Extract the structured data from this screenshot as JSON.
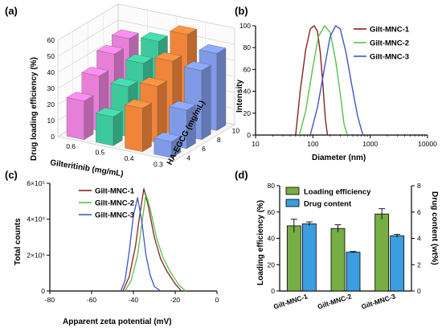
{
  "panels": {
    "a": {
      "label": "(a)"
    },
    "b": {
      "label": "(b)"
    },
    "c": {
      "label": "(c)"
    },
    "d": {
      "label": "(d)"
    }
  },
  "chart_data": [
    {
      "panel": "a",
      "type": "bar",
      "subtype": "3d-bar",
      "title": "",
      "zlabel": "Drug loading efficiency (%)",
      "xlabel": "Gilteritinib (mg/mL)",
      "ylabel": "HA-EGCG (mg/mL)",
      "x_categories": [
        "0.6",
        "0.5",
        "0.4",
        "0.3"
      ],
      "y_categories": [
        "10",
        "8",
        "6",
        "4"
      ],
      "zlim": [
        0,
        60
      ],
      "zticks": [
        "0",
        "10",
        "20",
        "30",
        "40",
        "50",
        "60"
      ],
      "colors": {
        "0.6": "#e77fd8",
        "0.5": "#3cc99c",
        "0.4": "#f0843a",
        "0.3": "#7f9ae6"
      },
      "values": [
        {
          "x": "0.6",
          "y": "10",
          "z": 46
        },
        {
          "x": "0.6",
          "y": "8",
          "z": 42
        },
        {
          "x": "0.6",
          "y": "6",
          "z": 34
        },
        {
          "x": "0.6",
          "y": "4",
          "z": 24
        },
        {
          "x": "0.5",
          "y": "10",
          "z": 48
        },
        {
          "x": "0.5",
          "y": "8",
          "z": 40
        },
        {
          "x": "0.5",
          "y": "6",
          "z": 31
        },
        {
          "x": "0.5",
          "y": "4",
          "z": 18
        },
        {
          "x": "0.4",
          "y": "10",
          "z": 56
        },
        {
          "x": "0.4",
          "y": "8",
          "z": 45
        },
        {
          "x": "0.4",
          "y": "6",
          "z": 35
        },
        {
          "x": "0.4",
          "y": "4",
          "z": 27
        },
        {
          "x": "0.3",
          "y": "10",
          "z": 48
        },
        {
          "x": "0.3",
          "y": "8",
          "z": 43
        },
        {
          "x": "0.3",
          "y": "6",
          "z": 24
        },
        {
          "x": "0.3",
          "y": "4",
          "z": 10
        }
      ]
    },
    {
      "panel": "b",
      "type": "line",
      "xscale": "log",
      "xlabel": "Diameter (nm)",
      "ylabel": "Intensity",
      "xlim": [
        10,
        10000
      ],
      "ylim": [
        0,
        100
      ],
      "xticks": [
        "10",
        "100",
        "1000",
        "10000"
      ],
      "yticks": [
        "0",
        "20",
        "40",
        "60",
        "80",
        "100"
      ],
      "legend": "top-right",
      "series": [
        {
          "name": "Gilt-MNC-1",
          "color": "#8b1f1f",
          "x": [
            50,
            60,
            75,
            90,
            105,
            120,
            135,
            150,
            165,
            180
          ],
          "y": [
            0,
            40,
            78,
            97,
            100,
            95,
            75,
            45,
            15,
            0
          ]
        },
        {
          "name": "Gilt-MNC-2",
          "color": "#57c14b",
          "x": [
            58,
            75,
            100,
            125,
            160,
            200,
            250,
            300,
            350,
            400
          ],
          "y": [
            0,
            22,
            62,
            90,
            100,
            94,
            68,
            38,
            10,
            0
          ]
        },
        {
          "name": "Gilt-MNC-3",
          "color": "#3f55c9",
          "x": [
            90,
            120,
            160,
            200,
            250,
            300,
            380,
            480,
            600,
            700,
            750
          ],
          "y": [
            0,
            25,
            62,
            90,
            100,
            97,
            75,
            45,
            18,
            5,
            0
          ]
        }
      ]
    },
    {
      "panel": "c",
      "type": "line",
      "xlabel": "Apparent zeta potential (mV)",
      "ylabel": "Total counts",
      "xlim": [
        -80,
        0
      ],
      "ylim": [
        0,
        600000
      ],
      "xticks": [
        "-80",
        "-60",
        "-40",
        "-20",
        "0"
      ],
      "yticks": [
        "0",
        "2×10⁵",
        "4×10⁵",
        "6×10⁵"
      ],
      "legend": "top-left",
      "series": [
        {
          "name": "Gilt-MNC-1",
          "color": "#8b1f1f",
          "x": [
            -45,
            -42,
            -39,
            -37,
            -35,
            -33,
            -30,
            -27,
            -24,
            -20,
            -17
          ],
          "y": [
            0,
            80000,
            250000,
            420000,
            570000,
            480000,
            300000,
            180000,
            110000,
            40000,
            0
          ]
        },
        {
          "name": "Gilt-MNC-2",
          "color": "#57c14b",
          "x": [
            -44,
            -41,
            -38,
            -36,
            -34,
            -32,
            -29,
            -26,
            -22,
            -18,
            -15
          ],
          "y": [
            0,
            60000,
            200000,
            370000,
            540000,
            460000,
            300000,
            190000,
            100000,
            30000,
            0
          ]
        },
        {
          "name": "Gilt-MNC-3",
          "color": "#3f55c9",
          "x": [
            -46,
            -44,
            -42,
            -40,
            -38,
            -36,
            -34,
            -32,
            -30,
            -27
          ],
          "y": [
            0,
            60000,
            220000,
            420000,
            520000,
            390000,
            200000,
            90000,
            25000,
            0
          ]
        }
      ]
    },
    {
      "panel": "d",
      "type": "bar",
      "categories": [
        "Gilt-MNC-1",
        "Gilt-MNC-2",
        "Gilt-MNC-3"
      ],
      "ylabel": "Loading efficiency (%)",
      "y2label": "Drug content (wt%)",
      "ylim": [
        0,
        80
      ],
      "y2lim": [
        0,
        8
      ],
      "yticks": [
        "0",
        "20",
        "40",
        "60",
        "80"
      ],
      "y2ticks": [
        "0",
        "2",
        "4",
        "6",
        "8"
      ],
      "legend": "top-left",
      "series": [
        {
          "name": "Loading efficiency",
          "color": "#76ad45",
          "axis": "left",
          "values": [
            49.5,
            47.5,
            58.5
          ],
          "errors": [
            5.0,
            2.8,
            4.0
          ]
        },
        {
          "name": "Drug content",
          "color": "#3a9ee0",
          "axis": "right",
          "values": [
            5.1,
            2.95,
            4.2
          ],
          "errors": [
            0.15,
            0.05,
            0.1
          ]
        }
      ]
    }
  ]
}
